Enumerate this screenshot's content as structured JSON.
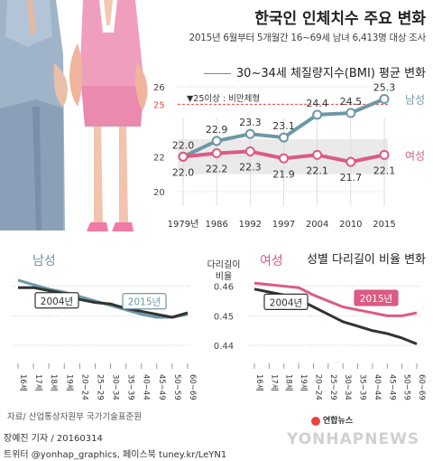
{
  "title": "한국인 인체치수 주요 변화",
  "subtitle": "2015년 6월부터 5개월간 16~69세 남녀 6,413명 대상 조사",
  "source": "자료/ 산업통상자원부 국가기술표준원",
  "byline": "장예진 기자 / 20160314",
  "social": "트위터 @yonhap_graphics, 페이스북 tuney.kr/LeYN1",
  "logo_text": "연합뉴스",
  "watermark": "YONHAPNEWS",
  "colors": {
    "male": "#6d98a6",
    "female": "#db5b82",
    "past": "#333333",
    "obesity": "#e8453c",
    "band": "#eaeaea"
  },
  "chart_data": [
    {
      "type": "line",
      "title": "30~34세 체질량지수(BMI) 평균 변화",
      "x": [
        "1979년",
        "1986",
        "1992",
        "1997",
        "2004",
        "2010",
        "2015"
      ],
      "series": [
        {
          "name": "남성",
          "values": [
            22.0,
            22.9,
            23.3,
            23.1,
            24.4,
            24.5,
            25.3
          ]
        },
        {
          "name": "여성",
          "values": [
            22.0,
            22.2,
            22.3,
            21.9,
            22.1,
            21.7,
            22.1
          ]
        }
      ],
      "value_labels": {
        "남성": [
          "22.0",
          "22.9",
          "23.3",
          "23.1",
          "24.4",
          "24.5",
          "25.3"
        ],
        "여성": [
          "22.0",
          "22.2",
          "22.3",
          "21.9",
          "22.1",
          "21.7",
          "22.1"
        ]
      },
      "yticks": [
        20,
        22,
        25,
        26
      ],
      "ylim": [
        20,
        26
      ],
      "annotation": "▼25이상 : 비만체형",
      "obesity_line": 25,
      "band": [
        21,
        23
      ],
      "grid": true
    },
    {
      "type": "line",
      "title": "성별 다리길이 비율 변화",
      "ylabel": "다리길이 비율",
      "x": [
        "16세",
        "17세",
        "18세",
        "19세",
        "20~24",
        "25~29",
        "30~34",
        "35~39",
        "40~44",
        "45~49",
        "50~59",
        "60~69"
      ],
      "yticks": [
        0.44,
        0.45,
        0.46
      ],
      "ylim": [
        0.437,
        0.462
      ],
      "panels": [
        {
          "label": "남성",
          "series": [
            {
              "name": "2004년",
              "values": [
                0.4595,
                0.4595,
                0.4585,
                0.4575,
                0.4555,
                0.4545,
                0.454,
                0.4525,
                0.4515,
                0.4505,
                0.4495,
                0.451
              ]
            },
            {
              "name": "2015년",
              "values": [
                0.462,
                0.4605,
                0.459,
                0.458,
                0.4565,
                0.455,
                0.4535,
                0.452,
                0.4505,
                0.4495,
                0.4495,
                0.4505
              ]
            }
          ]
        },
        {
          "label": "여성",
          "series": [
            {
              "name": "2004년",
              "values": [
                0.459,
                0.458,
                0.457,
                0.4555,
                0.453,
                0.4505,
                0.448,
                0.4465,
                0.445,
                0.444,
                0.4425,
                0.4405
              ]
            },
            {
              "name": "2015년",
              "values": [
                0.461,
                0.4605,
                0.46,
                0.4595,
                0.457,
                0.455,
                0.453,
                0.452,
                0.451,
                0.45,
                0.45,
                0.451
              ]
            }
          ]
        }
      ]
    }
  ]
}
